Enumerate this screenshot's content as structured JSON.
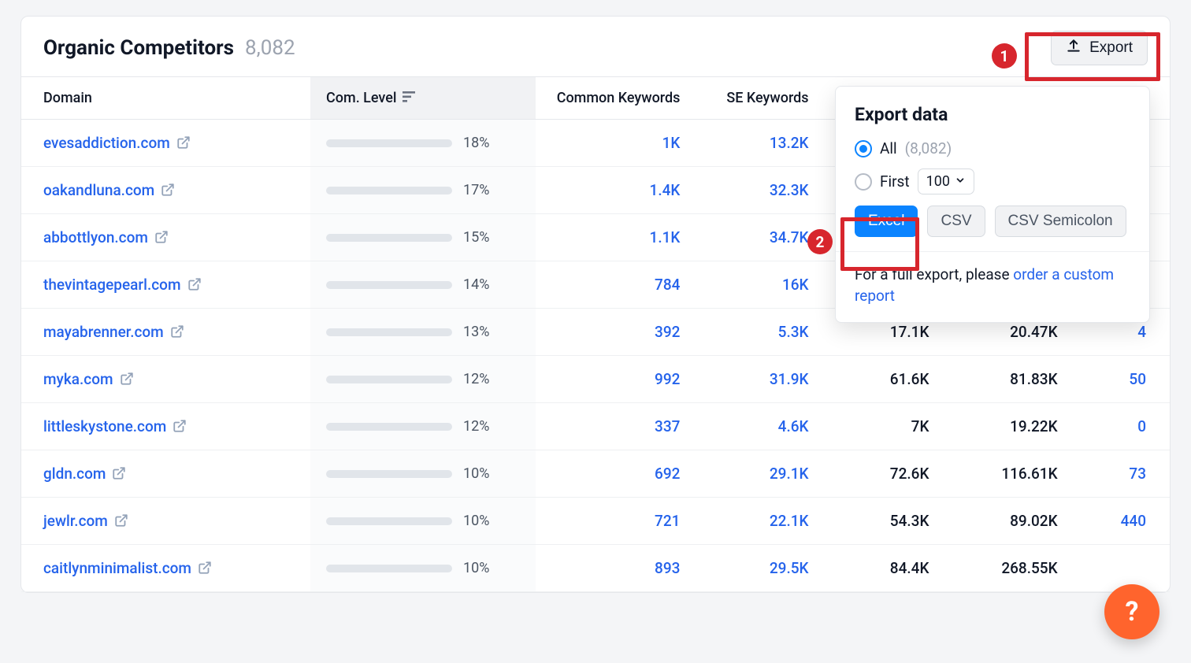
{
  "header": {
    "title": "Organic Competitors",
    "count": "8,082",
    "export_label": "Export"
  },
  "columns": {
    "domain": "Domain",
    "level": "Com. Level",
    "common_keywords": "Common Keywords",
    "se_keywords": "SE Keywords"
  },
  "rows": [
    {
      "domain": "evesaddiction.com",
      "level_pct": 18,
      "level_label": "18%",
      "ck": "1K",
      "sek": "13.2K",
      "a": "",
      "b": "",
      "c": ""
    },
    {
      "domain": "oakandluna.com",
      "level_pct": 17,
      "level_label": "17%",
      "ck": "1.4K",
      "sek": "32.3K",
      "a": "",
      "b": "",
      "c": ""
    },
    {
      "domain": "abbottlyon.com",
      "level_pct": 15,
      "level_label": "15%",
      "ck": "1.1K",
      "sek": "34.7K",
      "a": "",
      "b": "",
      "c": ""
    },
    {
      "domain": "thevintagepearl.com",
      "level_pct": 14,
      "level_label": "14%",
      "ck": "784",
      "sek": "16K",
      "a": "",
      "b": "",
      "c": ""
    },
    {
      "domain": "mayabrenner.com",
      "level_pct": 13,
      "level_label": "13%",
      "ck": "392",
      "sek": "5.3K",
      "a": "17.1K",
      "b": "20.47K",
      "c": "4"
    },
    {
      "domain": "myka.com",
      "level_pct": 12,
      "level_label": "12%",
      "ck": "992",
      "sek": "31.9K",
      "a": "61.6K",
      "b": "81.83K",
      "c": "50"
    },
    {
      "domain": "littleskystone.com",
      "level_pct": 12,
      "level_label": "12%",
      "ck": "337",
      "sek": "4.6K",
      "a": "7K",
      "b": "19.22K",
      "c": "0"
    },
    {
      "domain": "gldn.com",
      "level_pct": 10,
      "level_label": "10%",
      "ck": "692",
      "sek": "29.1K",
      "a": "72.6K",
      "b": "116.61K",
      "c": "73"
    },
    {
      "domain": "jewlr.com",
      "level_pct": 10,
      "level_label": "10%",
      "ck": "721",
      "sek": "22.1K",
      "a": "54.3K",
      "b": "89.02K",
      "c": "440"
    },
    {
      "domain": "caitlynminimalist.com",
      "level_pct": 10,
      "level_label": "10%",
      "ck": "893",
      "sek": "29.5K",
      "a": "84.4K",
      "b": "268.55K",
      "c": ""
    }
  ],
  "export_popover": {
    "title": "Export data",
    "option_all": "All",
    "option_all_count": "(8,082)",
    "option_first": "First",
    "first_value": "100",
    "formats": {
      "excel": "Excel",
      "csv": "CSV",
      "csv_semicolon": "CSV Semicolon"
    },
    "footer_text": "For a full export, please ",
    "footer_link": "order a custom report"
  },
  "annotations": {
    "badge_1": "1",
    "badge_2": "2"
  },
  "help": {
    "label": "?"
  },
  "style": {
    "bar_color": "#2aa1f2",
    "bar_track": "#e1e5ea",
    "link_color": "#2563eb",
    "accent_color": "#0b84ff",
    "annotation_color": "#d7262d",
    "fab_color": "#ff642d",
    "background_color": "#f4f5f7",
    "panel_background": "#ffffff",
    "border_color": "#e5e7eb"
  }
}
